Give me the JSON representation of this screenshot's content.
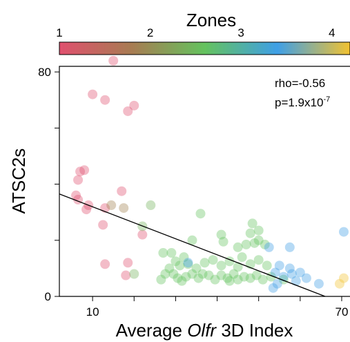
{
  "chart_data": {
    "type": "scatter",
    "colorbar": {
      "title": "Zones",
      "tick_labels": [
        "1",
        "2",
        "3",
        "4"
      ],
      "tick_values": [
        1,
        2,
        3,
        4
      ],
      "range": [
        1,
        4.2
      ],
      "gradient_colors": [
        "#e0506e",
        "#a77c52",
        "#64c25e",
        "#3f9fe6",
        "#f2c230"
      ]
    },
    "xlabel_prefix": "Average ",
    "xlabel_italic": "Olfr",
    "xlabel_suffix": " 3D Index",
    "ylabel": "ATSC2s",
    "x_tick_labels": [
      "10",
      "70"
    ],
    "y_tick_labels": [
      "0",
      "80"
    ],
    "xlim": [
      2,
      72
    ],
    "ylim": [
      0,
      82
    ],
    "stats": {
      "rho_text": "rho=-0.56",
      "p_prefix": "p=1.9x10",
      "p_exponent": "-7"
    },
    "regression": {
      "x": [
        2,
        66
      ],
      "y": [
        36.5,
        0
      ]
    },
    "points": [
      {
        "x": 15,
        "y": 84,
        "zone": 1.0
      },
      {
        "x": 10,
        "y": 72,
        "zone": 1.0
      },
      {
        "x": 13,
        "y": 70,
        "zone": 1.0
      },
      {
        "x": 20,
        "y": 68,
        "zone": 1.0
      },
      {
        "x": 18.5,
        "y": 66,
        "zone": 1.0
      },
      {
        "x": 8,
        "y": 45,
        "zone": 1.0
      },
      {
        "x": 7,
        "y": 44.5,
        "zone": 1.0
      },
      {
        "x": 6.5,
        "y": 41.5,
        "zone": 1.0
      },
      {
        "x": 6,
        "y": 36,
        "zone": 1.0
      },
      {
        "x": 6.5,
        "y": 34.5,
        "zone": 1.0
      },
      {
        "x": 9,
        "y": 32.5,
        "zone": 1.0
      },
      {
        "x": 8.5,
        "y": 31,
        "zone": 1.0
      },
      {
        "x": 17,
        "y": 37.5,
        "zone": 1.0
      },
      {
        "x": 13,
        "y": 31.5,
        "zone": 1.0
      },
      {
        "x": 12.5,
        "y": 25.5,
        "zone": 1.0
      },
      {
        "x": 22,
        "y": 22,
        "zone": 1.0
      },
      {
        "x": 13,
        "y": 11.5,
        "zone": 1.0
      },
      {
        "x": 18.5,
        "y": 12,
        "zone": 1.0
      },
      {
        "x": 18,
        "y": 7.5,
        "zone": 1.0
      },
      {
        "x": 14.5,
        "y": 32.5,
        "zone": 1.6
      },
      {
        "x": 17.5,
        "y": 31.5,
        "zone": 1.6
      },
      {
        "x": 24,
        "y": 32.5,
        "zone": 1.9
      },
      {
        "x": 22,
        "y": 25,
        "zone": 1.9
      },
      {
        "x": 20,
        "y": 8,
        "zone": 1.9
      },
      {
        "x": 27,
        "y": 15.5,
        "zone": 2.0
      },
      {
        "x": 29,
        "y": 15.5,
        "zone": 2.0
      },
      {
        "x": 34,
        "y": 20,
        "zone": 2.0
      },
      {
        "x": 36,
        "y": 29.5,
        "zone": 2.0
      },
      {
        "x": 41,
        "y": 22,
        "zone": 2.0
      },
      {
        "x": 41.5,
        "y": 19.5,
        "zone": 2.0
      },
      {
        "x": 45,
        "y": 17.5,
        "zone": 2.0
      },
      {
        "x": 47,
        "y": 18.5,
        "zone": 2.0
      },
      {
        "x": 48.5,
        "y": 26,
        "zone": 2.0
      },
      {
        "x": 48,
        "y": 22.5,
        "zone": 2.0
      },
      {
        "x": 50,
        "y": 23.5,
        "zone": 2.0
      },
      {
        "x": 50,
        "y": 20,
        "zone": 2.0
      },
      {
        "x": 49,
        "y": 19,
        "zone": 2.0
      },
      {
        "x": 51.5,
        "y": 18.5,
        "zone": 2.0
      },
      {
        "x": 30,
        "y": 12.5,
        "zone": 2.0
      },
      {
        "x": 31,
        "y": 11,
        "zone": 2.0
      },
      {
        "x": 32,
        "y": 14,
        "zone": 2.0
      },
      {
        "x": 33,
        "y": 11.5,
        "zone": 2.0
      },
      {
        "x": 35,
        "y": 10,
        "zone": 2.0
      },
      {
        "x": 37,
        "y": 12,
        "zone": 2.0
      },
      {
        "x": 39,
        "y": 13,
        "zone": 2.0
      },
      {
        "x": 41,
        "y": 11,
        "zone": 2.0
      },
      {
        "x": 43,
        "y": 12.5,
        "zone": 2.0
      },
      {
        "x": 45,
        "y": 10.5,
        "zone": 2.0
      },
      {
        "x": 46,
        "y": 14,
        "zone": 2.0
      },
      {
        "x": 48,
        "y": 11.5,
        "zone": 2.0
      },
      {
        "x": 50,
        "y": 13,
        "zone": 2.0
      },
      {
        "x": 52,
        "y": 11,
        "zone": 2.0
      },
      {
        "x": 28.5,
        "y": 10,
        "zone": 2.0
      },
      {
        "x": 29.5,
        "y": 8,
        "zone": 2.0
      },
      {
        "x": 30.5,
        "y": 6.5,
        "zone": 2.0
      },
      {
        "x": 32.5,
        "y": 7,
        "zone": 2.0
      },
      {
        "x": 34,
        "y": 8,
        "zone": 2.0
      },
      {
        "x": 35.5,
        "y": 6.5,
        "zone": 2.0
      },
      {
        "x": 36.5,
        "y": 8,
        "zone": 2.0
      },
      {
        "x": 38,
        "y": 7.5,
        "zone": 2.0
      },
      {
        "x": 39.5,
        "y": 6,
        "zone": 2.0
      },
      {
        "x": 41,
        "y": 7.5,
        "zone": 2.0
      },
      {
        "x": 42.5,
        "y": 6.5,
        "zone": 2.0
      },
      {
        "x": 44,
        "y": 8,
        "zone": 2.0
      },
      {
        "x": 45,
        "y": 6,
        "zone": 2.0
      },
      {
        "x": 46.5,
        "y": 7,
        "zone": 2.0
      },
      {
        "x": 48,
        "y": 6.5,
        "zone": 2.0
      },
      {
        "x": 49.5,
        "y": 7.5,
        "zone": 2.0
      },
      {
        "x": 51,
        "y": 6,
        "zone": 2.0
      },
      {
        "x": 53,
        "y": 7,
        "zone": 2.0
      },
      {
        "x": 26.5,
        "y": 6,
        "zone": 2.0
      },
      {
        "x": 27.5,
        "y": 8,
        "zone": 2.0
      },
      {
        "x": 31.5,
        "y": 5.5,
        "zone": 2.0
      },
      {
        "x": 43,
        "y": 5.5,
        "zone": 2.0
      },
      {
        "x": 56,
        "y": 6,
        "zone": 2.0
      },
      {
        "x": 33,
        "y": 12,
        "zone": 3.0
      },
      {
        "x": 52.5,
        "y": 17.5,
        "zone": 3.0
      },
      {
        "x": 57.5,
        "y": 17.5,
        "zone": 3.0
      },
      {
        "x": 57.5,
        "y": 10,
        "zone": 3.0
      },
      {
        "x": 55,
        "y": 11,
        "zone": 3.0
      },
      {
        "x": 54,
        "y": 8.5,
        "zone": 3.0
      },
      {
        "x": 56,
        "y": 7,
        "zone": 3.0
      },
      {
        "x": 58,
        "y": 8,
        "zone": 3.0
      },
      {
        "x": 60,
        "y": 8.5,
        "zone": 3.0
      },
      {
        "x": 61.5,
        "y": 6.5,
        "zone": 3.0
      },
      {
        "x": 59,
        "y": 5.5,
        "zone": 3.0
      },
      {
        "x": 54.5,
        "y": 4.5,
        "zone": 3.0
      },
      {
        "x": 53.5,
        "y": 3,
        "zone": 3.0
      },
      {
        "x": 64.5,
        "y": 4.5,
        "zone": 3.0
      },
      {
        "x": 70.5,
        "y": 23,
        "zone": 3.0
      },
      {
        "x": 69.5,
        "y": 4.5,
        "zone": 4.0
      },
      {
        "x": 70.5,
        "y": 6.5,
        "zone": 4.0
      }
    ]
  }
}
